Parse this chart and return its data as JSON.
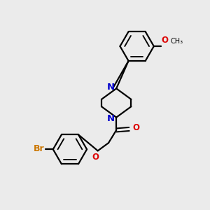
{
  "background_color": "#ebebeb",
  "bond_color": "#000000",
  "N_color": "#0000cc",
  "O_color": "#dd0000",
  "Br_color": "#cc7700",
  "text_color": "#000000",
  "figsize": [
    3.0,
    3.0
  ],
  "dpi": 100,
  "xlim": [
    0,
    10
  ],
  "ylim": [
    0,
    10
  ]
}
